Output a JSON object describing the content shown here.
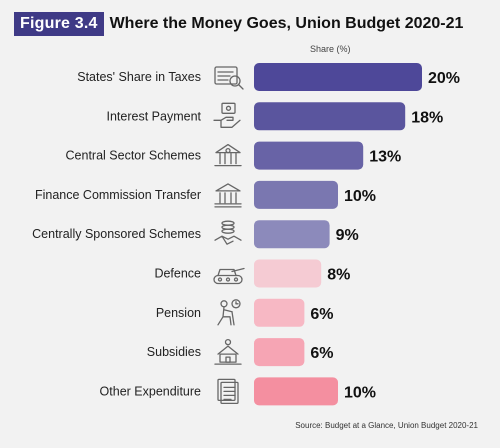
{
  "figure_label": "Figure 3.4",
  "title": "Where the Money Goes, Union Budget 2020-21",
  "share_header": "Share (%)",
  "source": "Source: Budget at a Glance, Union Budget 2020-21",
  "chart_data": {
    "type": "bar",
    "orientation": "horizontal",
    "title": "Where the Money Goes, Union Budget 2020-21",
    "value_header": "Share (%)",
    "value_suffix": "%",
    "xlim": [
      0,
      20
    ],
    "grid": false,
    "legend": "none",
    "categories": [
      "States' Share in Taxes",
      "Interest Payment",
      "Central Sector Schemes",
      "Finance Commission Transfer",
      "Centrally Sponsored Schemes",
      "Defence",
      "Pension",
      "Subsidies",
      "Other Expenditure"
    ],
    "values": [
      20,
      18,
      13,
      10,
      9,
      8,
      6,
      6,
      10
    ],
    "bar_colors": [
      "#4e4899",
      "#5a559e",
      "#6863a6",
      "#7a77b0",
      "#8c8abb",
      "#f5cbd3",
      "#f7b8c4",
      "#f6a5b4",
      "#f48fa0"
    ],
    "icons": [
      "tax-form-icon",
      "money-hand-icon",
      "government-building-icon",
      "bank-icon",
      "coins-handshake-icon",
      "tank-icon",
      "elderly-person-icon",
      "subsidy-icon",
      "document-stack-icon"
    ]
  }
}
